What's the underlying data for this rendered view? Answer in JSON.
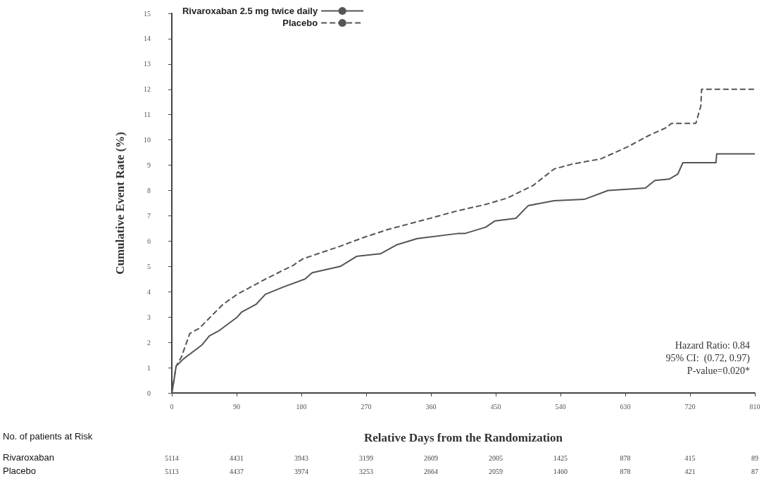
{
  "chart_data": {
    "type": "line",
    "xlabel": "Relative Days from the Randomization",
    "ylabel": "Cumulative Event Rate (%)",
    "xlim": [
      0,
      810
    ],
    "xticks": [
      0,
      90,
      180,
      270,
      360,
      450,
      540,
      630,
      720,
      810
    ],
    "ylim": [
      0,
      15
    ],
    "yticks": [
      0,
      1,
      2,
      3,
      4,
      5,
      6,
      7,
      8,
      9,
      10,
      11,
      12,
      13,
      14,
      15
    ],
    "grid": false,
    "legend": "top left",
    "marker": "none",
    "series": [
      {
        "name": "Rivaroxaban 2.5 mg twice daily",
        "color": "#555555",
        "line_style": "solid",
        "x": [
          0,
          3,
          6,
          16,
          42,
          52,
          65,
          91,
          97,
          117,
          130,
          156,
          185,
          195,
          234,
          257,
          290,
          312,
          341,
          397,
          407,
          436,
          449,
          478,
          495,
          531,
          573,
          606,
          658,
          671,
          691,
          703,
          710,
          756,
          757,
          810
        ],
        "values": [
          0,
          0.5,
          1.06,
          1.34,
          1.9,
          2.25,
          2.45,
          3.0,
          3.2,
          3.5,
          3.9,
          4.2,
          4.5,
          4.75,
          5.0,
          5.4,
          5.5,
          5.85,
          6.1,
          6.3,
          6.3,
          6.55,
          6.8,
          6.9,
          7.4,
          7.6,
          7.65,
          8.0,
          8.1,
          8.4,
          8.45,
          8.65,
          9.1,
          9.1,
          9.45,
          9.45
        ]
      },
      {
        "name": "Placebo",
        "color": "#555555",
        "line_style": "dashed",
        "x": [
          0,
          6,
          13,
          25,
          38,
          71,
          91,
          130,
          169,
          182,
          234,
          267,
          299,
          332,
          365,
          397,
          436,
          466,
          502,
          531,
          557,
          596,
          635,
          661,
          688,
          694,
          728,
          735,
          736,
          810
        ],
        "values": [
          0,
          1.06,
          1.4,
          2.35,
          2.55,
          3.5,
          3.9,
          4.5,
          5.05,
          5.3,
          5.8,
          6.15,
          6.45,
          6.7,
          6.95,
          7.2,
          7.45,
          7.7,
          8.2,
          8.85,
          9.05,
          9.25,
          9.75,
          10.15,
          10.5,
          10.65,
          10.65,
          11.35,
          12.0,
          12.0
        ]
      }
    ],
    "annotations": [
      "Hazard Ratio: 0.84",
      "95% CI:  (0.72, 0.97)",
      "P-value=0.020*",
      "No. of patients at Risk",
      "Rivaroxaban",
      "5114",
      "4431",
      "3943",
      "3199",
      "2609",
      "2005",
      "1425",
      "878",
      "415",
      "89",
      "Placebo",
      "5113",
      "4437",
      "3974",
      "3253",
      "2664",
      "2059",
      "1460",
      "878",
      "421",
      "87"
    ]
  }
}
